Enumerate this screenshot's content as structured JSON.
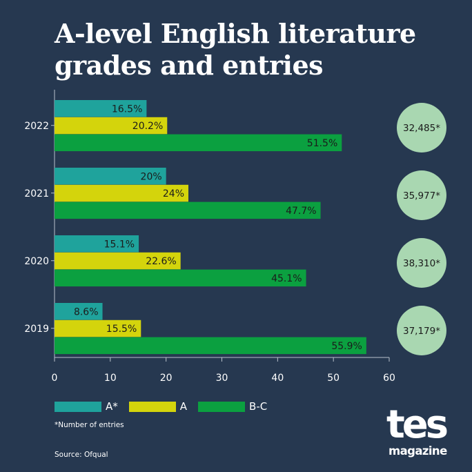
{
  "title": "A-level English literature grades and entries",
  "chart_data": {
    "type": "bar",
    "orientation": "horizontal",
    "categories": [
      "2022",
      "2021",
      "2020",
      "2019"
    ],
    "series": [
      {
        "name": "A*",
        "values": [
          16.5,
          20,
          15.1,
          8.6
        ],
        "labels": [
          "16.5%",
          "20%",
          "15.1%",
          "8.6%"
        ],
        "color": "#1fa39c"
      },
      {
        "name": "A",
        "values": [
          20.2,
          24,
          22.6,
          15.5
        ],
        "labels": [
          "20.2%",
          "24%",
          "22.6%",
          "15.5%"
        ],
        "color": "#d4d40c"
      },
      {
        "name": "B-C",
        "values": [
          51.5,
          47.7,
          45.1,
          55.9
        ],
        "labels": [
          "51.5%",
          "47.7%",
          "45.1%",
          "55.9%"
        ],
        "color": "#0ba040"
      }
    ],
    "entries": [
      "32,485*",
      "35,977*",
      "38,310*",
      "37,179*"
    ],
    "xlim": [
      0,
      60
    ],
    "xticks": [
      "0",
      "10",
      "20",
      "30",
      "40",
      "50",
      "60"
    ],
    "legend_position": "bottom-left",
    "grid": false
  },
  "footnote": "*Number of entries",
  "source": "Source: Ofqual",
  "logo": {
    "main": "tes",
    "sub": "magazine"
  },
  "colors": {
    "background": "#263850",
    "entry_circle": "#a9d7b1",
    "axis": "#b9c2cc"
  }
}
